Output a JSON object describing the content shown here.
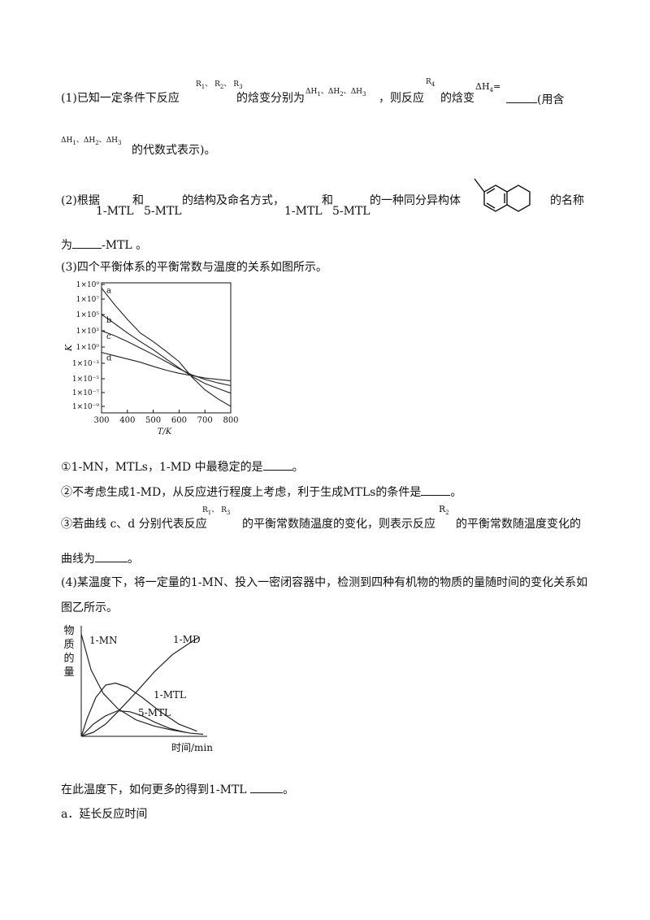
{
  "q1": {
    "prefix": "(1)已知一定条件下反应",
    "r1": "R",
    "r1s": "1",
    "sep1": "、",
    "r2": "R",
    "r2s": "2",
    "sep2": "、",
    "r3": "R",
    "r3s": "3",
    "text_enthalpy": "的焓变分别为",
    "dh1": "ΔH",
    "dh1s": "1",
    "dsep1": "、",
    "dh2": "ΔH",
    "dh2s": "2",
    "dsep2": "、",
    "dh3": "ΔH",
    "dh3s": "3",
    "text_then": "，则反应",
    "r4": "R",
    "r4s": "4",
    "text_enthalpy2": "的焓变",
    "dh4": "ΔH",
    "dh4s": "4",
    "eq": "=",
    "after_blank": "(用含",
    "line2_dh1": "ΔH",
    "line2_dh1s": "1",
    "line2_sep1": "、",
    "line2_dh2": "ΔH",
    "line2_dh2s": "2",
    "line2_sep2": "、",
    "line2_dh3": "ΔH",
    "line2_dh3s": "3",
    "line2_end": "的代数式表示)。"
  },
  "q2": {
    "prefix": "(2)根据",
    "label_a": "1-MTL",
    "and1": "和",
    "label_b": "5-MTL",
    "text1": "的结构及命名方式，",
    "label_c": "1-MTL",
    "and2": "和",
    "label_d": "5-MTL",
    "text2": "的一种同分异构体",
    "text3": "的名称",
    "line2_prefix": "为",
    "line2_suffix": "-MTL 。"
  },
  "q3": {
    "intro": "(3)四个平衡体系的平衡常数与温度的关系如图所示。",
    "item1_prefix": "①",
    "item1_a": "1-MN",
    "item1_comma1": "，",
    "item1_b": "MTLs",
    "item1_comma2": "，",
    "item1_rest": "1-MD 中最稳定的是",
    "item1_end": "。",
    "item2_prefix": "②不考虑生成",
    "item2_a": "1-MD",
    "item2_mid": "，从反应进行程度上考虑，利于生成",
    "item2_b": "MTLs",
    "item2_rest": "的条件是",
    "item2_end": "。",
    "item3_prefix": "③若曲线 c、d 分别代表反应",
    "item3_r1": "R",
    "item3_r1s": "1",
    "item3_sep": "、",
    "item3_r3": "R",
    "item3_r3s": "3",
    "item3_mid": "的平衡常数随温度的变化，则表示反应",
    "item3_r2": "R",
    "item3_r2s": "2",
    "item3_rest": "的平衡常数随温度变化的",
    "item3_line2": "曲线为",
    "item3_end": "。"
  },
  "q4": {
    "line1_prefix": "(4)某温度下，将一定量的",
    "line1_a": "1-MN",
    "line1_rest": "、投入一密闭容器中，检测到四种有机物的物质的量随时间的变化关系如",
    "line2": "图乙所示。",
    "question_prefix": "在此温度下，如何更多的得到",
    "question_a": "1-MTL",
    "question_end": "。",
    "option_a": "a．延长反应时间"
  },
  "chart_data": [
    {
      "type": "line",
      "ylabel": "K",
      "xlabel": "T/K",
      "x_ticks": [
        "300",
        "400",
        "500",
        "600",
        "700",
        "800"
      ],
      "xlim": [
        300,
        800
      ],
      "y_scale": "log",
      "y_ticks": [
        "1×10⁹",
        "1×10⁷",
        "1×10⁵",
        "1×10³",
        "1×10⁰",
        "1×10⁻³",
        "1×10⁻⁵",
        "1×10⁻⁷",
        "1×10⁻⁹"
      ],
      "y_tick_exponents": [
        9,
        7,
        5,
        3,
        0,
        -3,
        -5,
        -7,
        -9
      ],
      "series": [
        {
          "name": "a",
          "x": [
            300,
            350,
            400,
            450,
            500,
            550,
            600,
            650,
            700,
            750,
            800
          ],
          "y_exp": [
            8.5,
            6.3,
            4.4,
            2.6,
            1.0,
            -0.8,
            -2.7,
            -4.8,
            -6.6,
            -7.9,
            -9.0
          ]
        },
        {
          "name": "b",
          "x": [
            300,
            350,
            400,
            450,
            500,
            550,
            600,
            650,
            700,
            750,
            800
          ],
          "y_exp": [
            5.0,
            3.9,
            2.6,
            1.0,
            -0.5,
            -2.2,
            -3.6,
            -4.7,
            -5.7,
            -6.4,
            -7.1
          ]
        },
        {
          "name": "c",
          "x": [
            300,
            350,
            400,
            450,
            500,
            550,
            600,
            650,
            700,
            750,
            800
          ],
          "y_exp": [
            3.0,
            2.1,
            1.0,
            -0.2,
            -1.4,
            -2.7,
            -3.7,
            -4.5,
            -5.1,
            -5.6,
            -6.0
          ]
        },
        {
          "name": "d",
          "x": [
            300,
            350,
            400,
            450,
            500,
            550,
            600,
            650,
            700,
            750,
            800
          ],
          "y_exp": [
            -1.0,
            -1.6,
            -2.2,
            -2.8,
            -3.4,
            -3.9,
            -4.3,
            -4.6,
            -4.9,
            -5.1,
            -5.3
          ]
        }
      ]
    },
    {
      "type": "line",
      "ylabel": "物质的量",
      "xlabel": "时间/min",
      "series": [
        {
          "name": "1-MN",
          "x": [
            0,
            0.08,
            0.18,
            0.3,
            0.45,
            0.6,
            0.75,
            0.9,
            1.0
          ],
          "y": [
            1.0,
            0.65,
            0.42,
            0.27,
            0.16,
            0.1,
            0.06,
            0.03,
            0.02
          ]
        },
        {
          "name": "1-MD",
          "x": [
            0,
            0.1,
            0.2,
            0.3,
            0.45,
            0.6,
            0.75,
            0.9,
            0.97
          ],
          "y": [
            0,
            0.04,
            0.12,
            0.24,
            0.43,
            0.63,
            0.8,
            0.92,
            0.97
          ]
        },
        {
          "name": "1-MTL",
          "x": [
            0,
            0.05,
            0.12,
            0.2,
            0.28,
            0.38,
            0.5,
            0.65,
            0.8,
            0.95
          ],
          "y": [
            0,
            0.18,
            0.38,
            0.5,
            0.52,
            0.48,
            0.38,
            0.24,
            0.12,
            0.05
          ]
        },
        {
          "name": "5-MTL",
          "x": [
            0,
            0.1,
            0.2,
            0.3,
            0.4,
            0.5,
            0.6,
            0.72,
            0.85
          ],
          "y": [
            0,
            0.12,
            0.2,
            0.25,
            0.24,
            0.2,
            0.14,
            0.08,
            0.04
          ]
        }
      ]
    }
  ]
}
